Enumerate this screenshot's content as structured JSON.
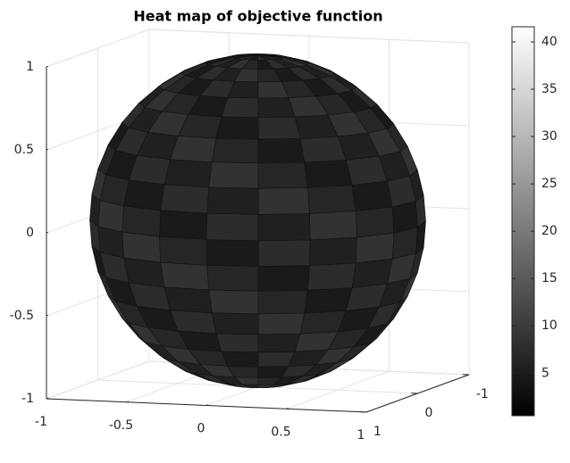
{
  "chart_data": {
    "type": "surface",
    "title": "Heat map of objective function",
    "xlim": [
      -1,
      1
    ],
    "xticks": [
      -1,
      -0.5,
      0,
      0.5,
      1
    ],
    "ylim": [
      -1,
      1
    ],
    "yticks": [
      -1,
      0,
      1
    ],
    "zlim": [
      -1,
      1
    ],
    "zticks": [
      -1,
      -0.5,
      0,
      0.5,
      1
    ],
    "grid": true,
    "colorbar": {
      "clim": [
        0.5,
        41.6
      ],
      "ticks": [
        5,
        10,
        15,
        20,
        25,
        30,
        35,
        40
      ]
    }
  }
}
